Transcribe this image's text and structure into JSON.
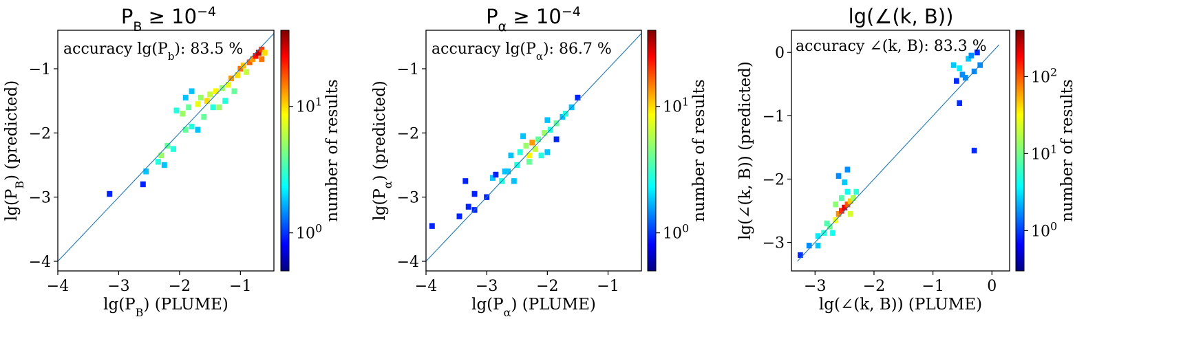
{
  "colors": {
    "diagonal": "#1f77b4",
    "colormap": [
      "#00007f",
      "#0000ff",
      "#007fff",
      "#00ffff",
      "#7fff7f",
      "#ffff00",
      "#ff7f00",
      "#ff0000",
      "#7f0000"
    ]
  },
  "chart_data": [
    {
      "type": "heatmap",
      "title": "P_B ≥ 10^{-4}",
      "title_parts": {
        "base": "P",
        "sub": "B",
        "rel": " ≥ 10",
        "sup": "−4"
      },
      "xlabel": "lg(P_B) (PLUME)",
      "xlabel_parts": {
        "pre": "lg(P",
        "sub": "B",
        "post": ") (PLUME)"
      },
      "ylabel": "lg(P_B) (predicted)",
      "ylabel_parts": {
        "pre": "lg(P",
        "sub": "B",
        "post": ") (predicted)"
      },
      "annotation": "accuracy lg(P_b): 83.5 %",
      "annotation_parts": {
        "pre": "accuracy lg(P",
        "sub": "b",
        "post": "): 83.5 %"
      },
      "xlim": [
        -4.0,
        -0.45
      ],
      "ylim": [
        -4.15,
        -0.4
      ],
      "xticks": [
        -4,
        -3,
        -2,
        -1
      ],
      "xtick_labels": [
        "−4",
        "−3",
        "−2",
        "−1"
      ],
      "yticks": [
        -4,
        -3,
        -2,
        -1
      ],
      "ytick_labels": [
        "−4",
        "−3",
        "−2",
        "−1"
      ],
      "diagonal": [
        -4.0,
        -0.45
      ],
      "colorbar": {
        "label": "number of results",
        "scale": "log",
        "range": [
          0.5,
          40
        ],
        "ticks": [
          1,
          10
        ],
        "tick_labels": [
          "10^0",
          "10^1"
        ]
      },
      "cells": [
        [
          -3.15,
          -2.95,
          1
        ],
        [
          -2.6,
          -2.8,
          1
        ],
        [
          -2.55,
          -2.6,
          2
        ],
        [
          -2.35,
          -2.45,
          3
        ],
        [
          -2.3,
          -2.35,
          5
        ],
        [
          -2.25,
          -2.5,
          2
        ],
        [
          -2.2,
          -2.2,
          4
        ],
        [
          -2.1,
          -2.25,
          3
        ],
        [
          -1.9,
          -1.95,
          4
        ],
        [
          -1.8,
          -1.9,
          3
        ],
        [
          -1.7,
          -1.95,
          2
        ],
        [
          -1.95,
          -1.7,
          5
        ],
        [
          -1.85,
          -1.6,
          4
        ],
        [
          -1.7,
          -1.55,
          7
        ],
        [
          -1.65,
          -1.45,
          5
        ],
        [
          -1.55,
          -1.5,
          9
        ],
        [
          -1.5,
          -1.4,
          6
        ],
        [
          -1.4,
          -1.35,
          8
        ],
        [
          -1.3,
          -1.3,
          5
        ],
        [
          -1.2,
          -1.25,
          7
        ],
        [
          -1.15,
          -1.15,
          12
        ],
        [
          -1.05,
          -1.1,
          9
        ],
        [
          -1.0,
          -1.0,
          14
        ],
        [
          -0.95,
          -0.95,
          10
        ],
        [
          -0.9,
          -1.05,
          6
        ],
        [
          -0.85,
          -0.9,
          15
        ],
        [
          -0.8,
          -0.85,
          12
        ],
        [
          -0.75,
          -0.8,
          22
        ],
        [
          -0.7,
          -0.75,
          30
        ],
        [
          -0.65,
          -0.7,
          18
        ],
        [
          -0.6,
          -0.75,
          9
        ],
        [
          -0.65,
          -0.85,
          14
        ],
        [
          -1.1,
          -1.35,
          4
        ],
        [
          -1.45,
          -1.6,
          3
        ],
        [
          -1.9,
          -1.45,
          2
        ],
        [
          -2.05,
          -1.65,
          3
        ],
        [
          -1.6,
          -1.75,
          4
        ],
        [
          -1.25,
          -1.5,
          3
        ],
        [
          -1.8,
          -1.35,
          2
        ],
        [
          -1.35,
          -1.6,
          5
        ]
      ]
    },
    {
      "type": "heatmap",
      "title": "P_α ≥ 10^{-4}",
      "title_parts": {
        "base": "P",
        "sub": "α",
        "rel": " ≥ 10",
        "sup": "−4"
      },
      "xlabel": "lg(P_α) (PLUME)",
      "xlabel_parts": {
        "pre": "lg(P",
        "sub": "α",
        "post": ") (PLUME)"
      },
      "ylabel": "lg(P_α) (predicted)",
      "ylabel_parts": {
        "pre": "lg(P",
        "sub": "α",
        "post": ") (predicted)"
      },
      "annotation": "accuracy lg(P_α): 86.7 %",
      "annotation_parts": {
        "pre": "accuracy lg(P",
        "sub": "α",
        "post": "): 86.7 %"
      },
      "xlim": [
        -4.0,
        -0.45
      ],
      "ylim": [
        -4.15,
        -0.4
      ],
      "xticks": [
        -4,
        -3,
        -2,
        -1
      ],
      "xtick_labels": [
        "−4",
        "−3",
        "−2",
        "−1"
      ],
      "yticks": [
        -4,
        -3,
        -2,
        -1
      ],
      "ytick_labels": [
        "−4",
        "−3",
        "−2",
        "−1"
      ],
      "diagonal": [
        -4.0,
        -0.45
      ],
      "colorbar": {
        "label": "number of results",
        "scale": "log",
        "range": [
          0.5,
          40
        ],
        "ticks": [
          1,
          10
        ],
        "tick_labels": [
          "10^0",
          "10^1"
        ]
      },
      "cells": [
        [
          -3.9,
          -3.45,
          1
        ],
        [
          -3.45,
          -3.3,
          1
        ],
        [
          -3.3,
          -3.15,
          1
        ],
        [
          -3.2,
          -2.95,
          1
        ],
        [
          -3.0,
          -3.0,
          1
        ],
        [
          -3.35,
          -2.75,
          1
        ],
        [
          -2.9,
          -2.7,
          2
        ],
        [
          -2.75,
          -2.75,
          3
        ],
        [
          -2.65,
          -2.6,
          2
        ],
        [
          -2.5,
          -2.5,
          3
        ],
        [
          -2.6,
          -2.35,
          2
        ],
        [
          -2.45,
          -2.3,
          3
        ],
        [
          -2.35,
          -2.2,
          5
        ],
        [
          -2.3,
          -2.35,
          8
        ],
        [
          -2.25,
          -2.15,
          12
        ],
        [
          -2.2,
          -2.25,
          6
        ],
        [
          -2.15,
          -2.1,
          4
        ],
        [
          -2.05,
          -2.0,
          5
        ],
        [
          -2.3,
          -2.45,
          4
        ],
        [
          -2.1,
          -2.35,
          3
        ],
        [
          -1.95,
          -1.95,
          3
        ],
        [
          -1.85,
          -1.85,
          4
        ],
        [
          -1.75,
          -1.75,
          2
        ],
        [
          -1.7,
          -1.7,
          3
        ],
        [
          -1.6,
          -1.6,
          2
        ],
        [
          -1.5,
          -1.45,
          1
        ],
        [
          -2.0,
          -2.3,
          2
        ],
        [
          -2.7,
          -2.6,
          2
        ],
        [
          -2.85,
          -2.65,
          1
        ],
        [
          -3.2,
          -3.2,
          1
        ],
        [
          -2.55,
          -2.75,
          2
        ],
        [
          -2.0,
          -1.8,
          2
        ],
        [
          -2.4,
          -2.05,
          2
        ],
        [
          -1.85,
          -2.1,
          1
        ]
      ]
    },
    {
      "type": "heatmap",
      "title": "lg(∠(k, B))",
      "xlabel": "lg(∠(k, B)) (PLUME)",
      "ylabel": "lg(∠(k, B)) (predicted)",
      "annotation": "accuracy ∠(k, B): 83.3 %",
      "xlim": [
        -3.4,
        0.3
      ],
      "ylim": [
        -3.45,
        0.35
      ],
      "xticks": [
        -3,
        -2,
        -1,
        0
      ],
      "xtick_labels": [
        "−3",
        "−2",
        "−1",
        "0"
      ],
      "yticks": [
        -3,
        -2,
        -1,
        0
      ],
      "ytick_labels": [
        "−3",
        "−2",
        "−1",
        "0"
      ],
      "diagonal": [
        -3.3,
        0.12
      ],
      "colorbar": {
        "label": "number of results",
        "scale": "log",
        "range": [
          0.3,
          400
        ],
        "ticks": [
          1,
          10,
          100
        ],
        "tick_labels": [
          "10^0",
          "10^1",
          "10^2"
        ]
      },
      "cells": [
        [
          -3.25,
          -3.2,
          1
        ],
        [
          -3.1,
          -3.05,
          2
        ],
        [
          -2.95,
          -2.9,
          4
        ],
        [
          -2.85,
          -2.85,
          6
        ],
        [
          -2.75,
          -2.75,
          10
        ],
        [
          -2.65,
          -2.65,
          25
        ],
        [
          -2.6,
          -2.55,
          60
        ],
        [
          -2.55,
          -2.5,
          120
        ],
        [
          -2.5,
          -2.45,
          200
        ],
        [
          -2.45,
          -2.4,
          90
        ],
        [
          -2.4,
          -2.35,
          40
        ],
        [
          -2.35,
          -2.3,
          15
        ],
        [
          -2.3,
          -2.2,
          6
        ],
        [
          -2.55,
          -2.3,
          8
        ],
        [
          -2.45,
          -2.2,
          5
        ],
        [
          -2.5,
          -2.05,
          3
        ],
        [
          -2.45,
          -1.85,
          2
        ],
        [
          -2.6,
          -1.95,
          2
        ],
        [
          -2.7,
          -2.85,
          5
        ],
        [
          -2.8,
          -2.7,
          8
        ],
        [
          -2.95,
          -3.05,
          3
        ],
        [
          -2.65,
          -2.4,
          12
        ],
        [
          -2.4,
          -2.55,
          20
        ],
        [
          -0.65,
          -0.2,
          3
        ],
        [
          -0.55,
          -0.25,
          4
        ],
        [
          -0.5,
          -0.35,
          2
        ],
        [
          -0.4,
          -0.1,
          3
        ],
        [
          -0.3,
          -0.3,
          2
        ],
        [
          -0.35,
          -0.05,
          2
        ],
        [
          -0.45,
          -0.4,
          2
        ],
        [
          -0.2,
          -0.2,
          2
        ],
        [
          -0.25,
          0.0,
          1
        ],
        [
          -0.6,
          -0.45,
          1
        ],
        [
          -0.55,
          -0.8,
          1
        ],
        [
          -0.3,
          -1.55,
          1
        ]
      ]
    }
  ]
}
